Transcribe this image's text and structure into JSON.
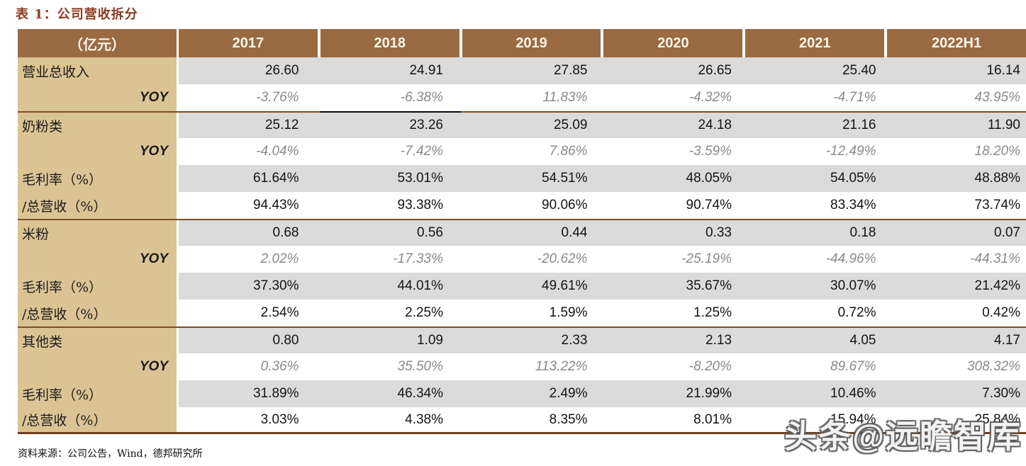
{
  "title": "表 1：公司营收拆分",
  "table": {
    "unit_header": "（亿元）",
    "year_headers": [
      "2017",
      "2018",
      "2019",
      "2020",
      "2021",
      "2022H1"
    ],
    "rows": [
      {
        "label": "营业总收入",
        "type": "data",
        "section_start": false,
        "underline_col": null,
        "values": [
          "26.60",
          "24.91",
          "27.85",
          "26.65",
          "25.40",
          "16.14"
        ]
      },
      {
        "label": "YOY",
        "type": "yoy",
        "section_start": false,
        "underline_col": 1,
        "values": [
          "-3.76%",
          "-6.38%",
          "11.83%",
          "-4.32%",
          "-4.71%",
          "43.95%"
        ]
      },
      {
        "label": "奶粉类",
        "type": "data",
        "section_start": true,
        "underline_col": null,
        "values": [
          "25.12",
          "23.26",
          "25.09",
          "24.18",
          "21.16",
          "11.90"
        ]
      },
      {
        "label": "YOY",
        "type": "yoy",
        "section_start": false,
        "underline_col": null,
        "values": [
          "-4.04%",
          "-7.42%",
          "7.86%",
          "-3.59%",
          "-12.49%",
          "18.20%"
        ]
      },
      {
        "label": "毛利率（%）",
        "type": "data",
        "section_start": false,
        "underline_col": null,
        "values": [
          "61.64%",
          "53.01%",
          "54.51%",
          "48.05%",
          "54.05%",
          "48.88%"
        ]
      },
      {
        "label": "/总营收（%）",
        "type": "data",
        "section_start": false,
        "underline_col": null,
        "values": [
          "94.43%",
          "93.38%",
          "90.06%",
          "90.74%",
          "83.34%",
          "73.74%"
        ]
      },
      {
        "label": "米粉",
        "type": "data",
        "section_start": true,
        "underline_col": null,
        "values": [
          "0.68",
          "0.56",
          "0.44",
          "0.33",
          "0.18",
          "0.07"
        ]
      },
      {
        "label": "YOY",
        "type": "yoy",
        "section_start": false,
        "underline_col": null,
        "values": [
          "2.02%",
          "-17.33%",
          "-20.62%",
          "-25.19%",
          "-44.96%",
          "-44.31%"
        ]
      },
      {
        "label": "毛利率（%）",
        "type": "data",
        "section_start": false,
        "underline_col": null,
        "values": [
          "37.30%",
          "44.01%",
          "49.61%",
          "35.67%",
          "30.07%",
          "21.42%"
        ]
      },
      {
        "label": "/总营收（%）",
        "type": "data",
        "section_start": false,
        "underline_col": null,
        "values": [
          "2.54%",
          "2.25%",
          "1.59%",
          "1.25%",
          "0.72%",
          "0.42%"
        ]
      },
      {
        "label": "其他类",
        "type": "data",
        "section_start": true,
        "underline_col": null,
        "values": [
          "0.80",
          "1.09",
          "2.33",
          "2.13",
          "4.05",
          "4.17"
        ]
      },
      {
        "label": "YOY",
        "type": "yoy",
        "section_start": false,
        "underline_col": null,
        "values": [
          "0.36%",
          "35.50%",
          "113.22%",
          "-8.20%",
          "89.67%",
          "308.32%"
        ]
      },
      {
        "label": "毛利率（%）",
        "type": "data",
        "section_start": false,
        "underline_col": null,
        "values": [
          "31.89%",
          "46.34%",
          "2.49%",
          "21.99%",
          "10.46%",
          "7.30%"
        ]
      },
      {
        "label": "/总营收（%）",
        "type": "data",
        "section_start": false,
        "underline_col": null,
        "values": [
          "3.03%",
          "4.38%",
          "8.35%",
          "8.01%",
          "15.94%",
          "25.84%"
        ]
      }
    ]
  },
  "source_note": "资料来源：公司公告，Wind，德邦研究所",
  "watermark": "头条@远瞻智库",
  "colors": {
    "header_bg": "#9A6A43",
    "label_col_bg": "#DBC494",
    "row_gray": "#DBDBDB",
    "row_white": "#FFFFFF",
    "section_line": "#7E4F26",
    "bottom_border": "#70401E",
    "title_text": "#8C3A21",
    "yoy_text": "#8A8A8A",
    "value_text": "#141414"
  }
}
